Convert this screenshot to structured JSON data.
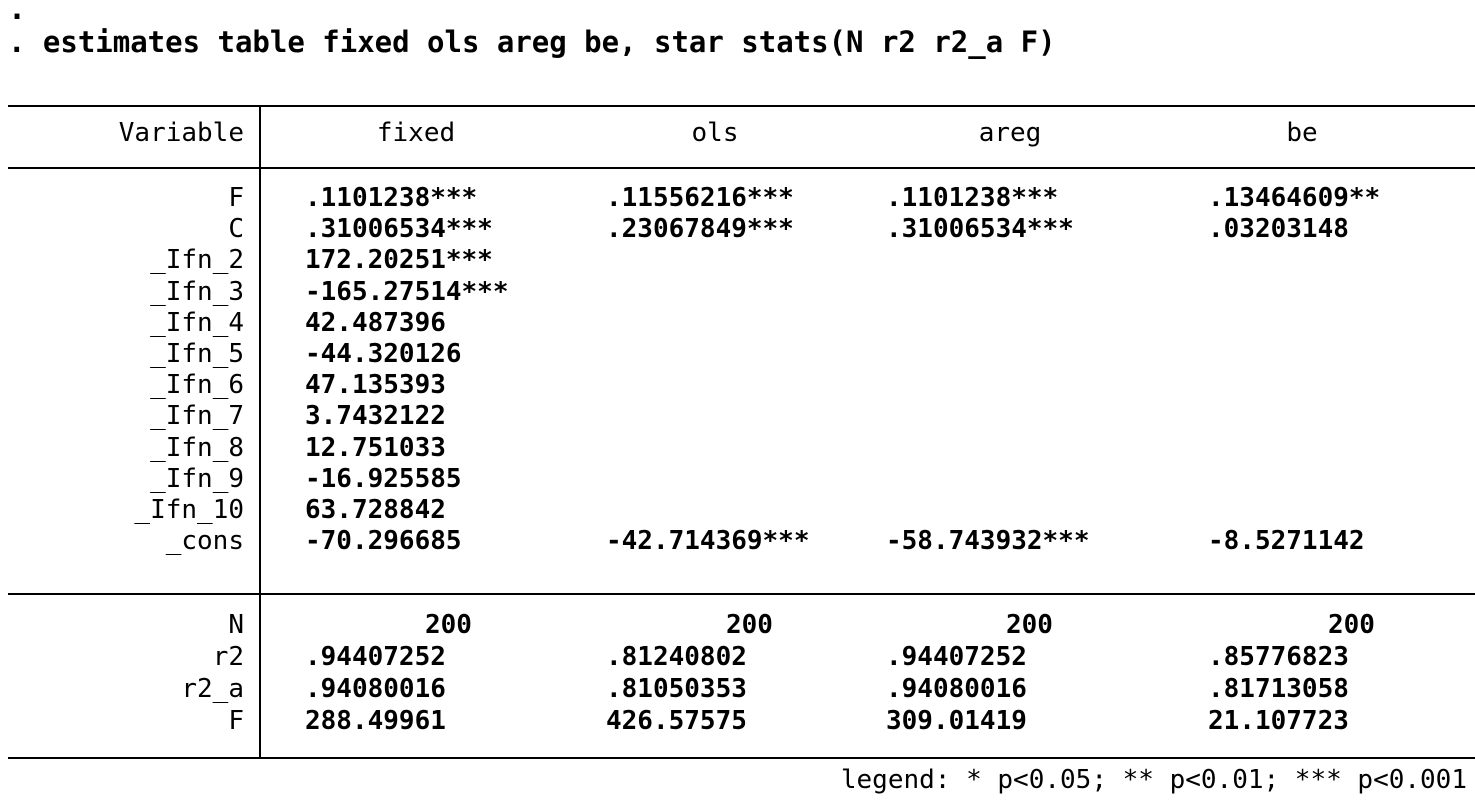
{
  "console": {
    "dot": ".",
    "command": ". estimates table fixed ols areg be, star stats(N r2 r2_a F)"
  },
  "table": {
    "corner": "Variable",
    "columns": [
      "fixed",
      "ols",
      "areg",
      "be"
    ],
    "coef_rows": [
      {
        "label": "F",
        "values": [
          ".1101238***",
          ".11556216***",
          ".1101238***",
          ".13464609**"
        ]
      },
      {
        "label": "C",
        "values": [
          ".31006534***",
          ".23067849***",
          ".31006534***",
          ".03203148"
        ]
      },
      {
        "label": "_Ifn_2",
        "values": [
          "172.20251***",
          "",
          "",
          ""
        ]
      },
      {
        "label": "_Ifn_3",
        "values": [
          "-165.27514***",
          "",
          "",
          ""
        ]
      },
      {
        "label": "_Ifn_4",
        "values": [
          "42.487396",
          "",
          "",
          ""
        ]
      },
      {
        "label": "_Ifn_5",
        "values": [
          "-44.320126",
          "",
          "",
          ""
        ]
      },
      {
        "label": "_Ifn_6",
        "values": [
          "47.135393",
          "",
          "",
          ""
        ]
      },
      {
        "label": "_Ifn_7",
        "values": [
          "3.7432122",
          "",
          "",
          ""
        ]
      },
      {
        "label": "_Ifn_8",
        "values": [
          "12.751033",
          "",
          "",
          ""
        ]
      },
      {
        "label": "_Ifn_9",
        "values": [
          "-16.925585",
          "",
          "",
          ""
        ]
      },
      {
        "label": "_Ifn_10",
        "values": [
          "63.728842",
          "",
          "",
          ""
        ]
      },
      {
        "label": "_cons",
        "values": [
          "-70.296685",
          "-42.714369***",
          "-58.743932***",
          "-8.5271142"
        ]
      }
    ],
    "stat_rows": [
      {
        "label": "N",
        "values": [
          "200",
          "200",
          "200",
          "200"
        ]
      },
      {
        "label": "r2",
        "values": [
          ".94407252",
          ".81240802",
          ".94407252",
          ".85776823"
        ]
      },
      {
        "label": "r2_a",
        "values": [
          ".94080016",
          ".81050353",
          ".94080016",
          ".81713058"
        ]
      },
      {
        "label": "F",
        "values": [
          "288.49961",
          "426.57575",
          "309.01419",
          "21.107723"
        ]
      }
    ]
  },
  "legend": "legend: * p<0.05; ** p<0.01; *** p<0.001"
}
